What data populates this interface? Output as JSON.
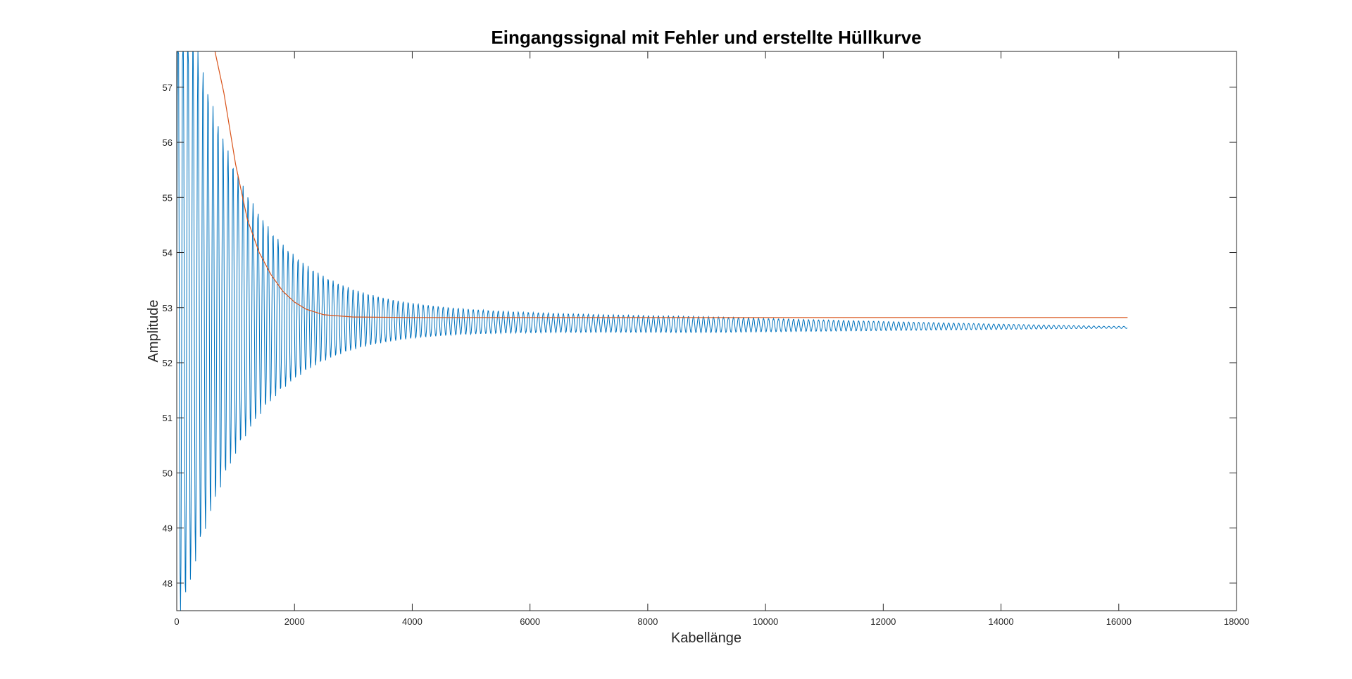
{
  "chart_data": {
    "type": "line",
    "title": "Eingangssignal mit Fehler und erstellte Hüllkurve",
    "xlabel": "Kabellänge",
    "ylabel": "Amplitude",
    "xlim": [
      0,
      18000
    ],
    "ylim": [
      47.5,
      57.65
    ],
    "xticks": [
      0,
      2000,
      4000,
      6000,
      8000,
      10000,
      12000,
      14000,
      16000,
      18000
    ],
    "yticks": [
      48,
      49,
      50,
      51,
      52,
      53,
      54,
      55,
      56,
      57
    ],
    "grid": false,
    "legend": "none",
    "series": [
      {
        "color": "#0072BD",
        "description": "damped oscillating input signal",
        "x_range": [
          0,
          16150
        ],
        "final_value": 52.6,
        "points": [
          [
            0,
            57.65
          ],
          [
            100,
            47.5
          ],
          [
            200,
            57.65
          ],
          [
            300,
            47.5
          ],
          [
            400,
            57.5
          ],
          [
            500,
            49.0
          ],
          [
            600,
            56.4
          ],
          [
            700,
            50.6
          ],
          [
            800,
            55.6
          ],
          [
            900,
            50.9
          ],
          [
            1000,
            55.2
          ],
          [
            1200,
            54.6
          ],
          [
            1400,
            54.4
          ],
          [
            1600,
            54.1
          ],
          [
            1800,
            53.9
          ],
          [
            2000,
            53.7
          ],
          [
            2500,
            53.35
          ],
          [
            3000,
            53.1
          ],
          [
            3500,
            52.95
          ],
          [
            4000,
            52.85
          ],
          [
            4500,
            52.85
          ],
          [
            5000,
            52.8
          ],
          [
            6000,
            52.78
          ],
          [
            7000,
            52.75
          ],
          [
            8000,
            52.72
          ],
          [
            9000,
            52.7
          ],
          [
            10000,
            52.68
          ],
          [
            12000,
            52.65
          ],
          [
            14000,
            52.62
          ],
          [
            16150,
            52.6
          ]
        ]
      },
      {
        "color": "#D95319",
        "description": "envelope",
        "points": [
          [
            650,
            57.65
          ],
          [
            800,
            56.9
          ],
          [
            1000,
            55.6
          ],
          [
            1200,
            54.6
          ],
          [
            1400,
            54.0
          ],
          [
            1600,
            53.6
          ],
          [
            1800,
            53.3
          ],
          [
            2000,
            53.1
          ],
          [
            2200,
            52.97
          ],
          [
            2500,
            52.87
          ],
          [
            3000,
            52.83
          ],
          [
            4000,
            52.82
          ],
          [
            8000,
            52.82
          ],
          [
            12000,
            52.82
          ],
          [
            16150,
            52.82
          ]
        ]
      }
    ]
  }
}
